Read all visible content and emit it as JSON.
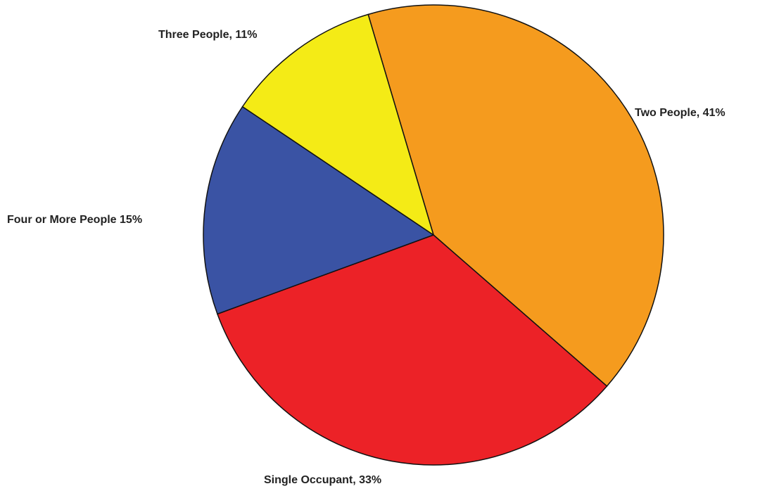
{
  "chart_data": {
    "type": "pie",
    "slices": [
      {
        "label": "Two People, 41%",
        "category": "Two People",
        "value": 41,
        "color": "#F59B1E"
      },
      {
        "label": "Single Occupant, 33%",
        "category": "Single Occupant",
        "value": 33,
        "color": "#EC2227"
      },
      {
        "label": "Four or More People 15%",
        "category": "Four or More People",
        "value": 15,
        "color": "#3A53A4"
      },
      {
        "label": "Three People, 11%",
        "category": "Three People",
        "value": 11,
        "color": "#F4EB16"
      }
    ],
    "title": "",
    "legend": "none"
  }
}
